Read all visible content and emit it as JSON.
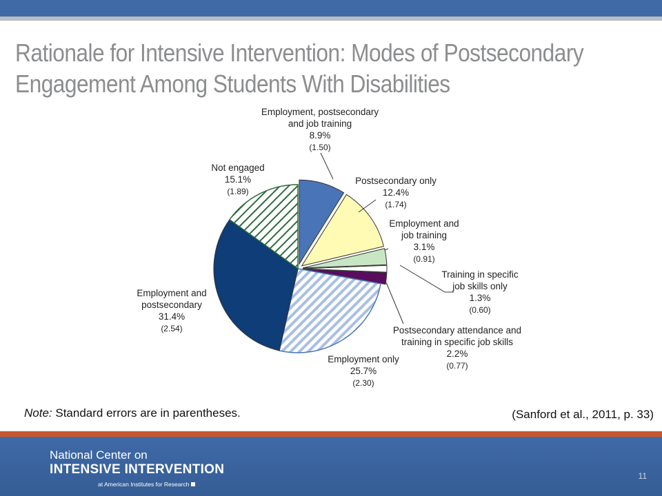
{
  "slide": {
    "title_line1": "Rationale for Intensive Intervention: Modes of Postsecondary",
    "title_line2": "Engagement Among Students With Disabilities",
    "note_prefix": "Note:",
    "note_text": "Standard errors are in parentheses.",
    "citation": "(Sanford et al., 2011, p. 33)",
    "slide_number": "11",
    "colors": {
      "top_bar": "#3f6aa6",
      "accent": "#c9582e",
      "title": "#8c8d8f"
    }
  },
  "footer": {
    "line1": "National Center on",
    "line2": "INTENSIVE INTERVENTION",
    "line3": "at American Institutes for Research"
  },
  "chart_data": {
    "type": "pie",
    "title": "",
    "legend": "none",
    "slices": [
      {
        "label_lines": [
          "Employment, postsecondary",
          "and job training"
        ],
        "value": 8.9,
        "value_text": "8.9%",
        "se_text": "(1.50)",
        "color": "#4a74b8",
        "pattern": "solid",
        "exploded": true
      },
      {
        "label_lines": [
          "Postsecondary only"
        ],
        "value": 12.4,
        "value_text": "12.4%",
        "se_text": "(1.74)",
        "color": "#fffbb4",
        "pattern": "solid",
        "exploded": true
      },
      {
        "label_lines": [
          "Employment and",
          "job training"
        ],
        "value": 3.1,
        "value_text": "3.1%",
        "se_text": "(0.91)",
        "color": "#c7e7c2",
        "pattern": "solid",
        "exploded": true
      },
      {
        "label_lines": [
          "Training in specific",
          "job skills only"
        ],
        "value": 1.3,
        "value_text": "1.3%",
        "se_text": "(0.60)",
        "color": "#ffffff",
        "pattern": "solid",
        "exploded": true
      },
      {
        "label_lines": [
          "Postsecondary attendance and",
          "training in specific job skills"
        ],
        "value": 2.2,
        "value_text": "2.2%",
        "se_text": "(0.77)",
        "color": "#5a0d5e",
        "pattern": "solid",
        "exploded": true
      },
      {
        "label_lines": [
          "Employment only"
        ],
        "value": 25.7,
        "value_text": "25.7%",
        "se_text": "(2.30)",
        "color": "#4a74b8",
        "pattern": "diagonal-stripes",
        "exploded": false
      },
      {
        "label_lines": [
          "Employment and",
          "postsecondary"
        ],
        "value": 31.4,
        "value_text": "31.4%",
        "se_text": "(2.54)",
        "color": "#0e3d78",
        "pattern": "solid",
        "exploded": false
      },
      {
        "label_lines": [
          "Not engaged"
        ],
        "value": 15.1,
        "value_text": "15.1%",
        "se_text": "(1.89)",
        "color": "#2e6a3e",
        "pattern": "diagonal-stripes",
        "exploded": false
      }
    ]
  }
}
